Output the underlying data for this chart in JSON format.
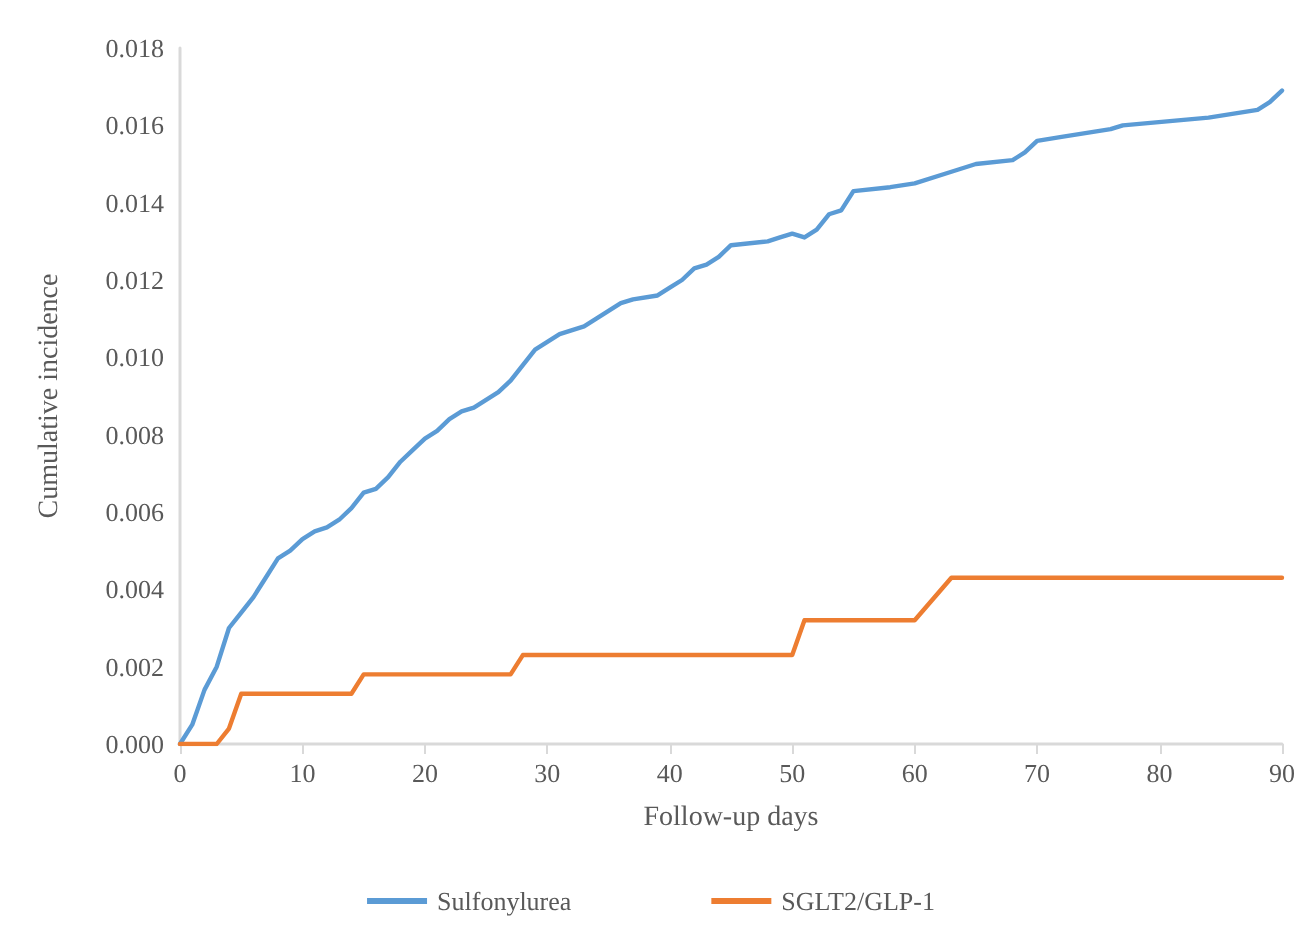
{
  "chart_data": {
    "type": "line",
    "xlabel": "Follow-up days",
    "ylabel": "Cumulative incidence",
    "legend": "bottom",
    "grid": false,
    "marker": "none",
    "line_style": "solid",
    "xlim": [
      0,
      90
    ],
    "xticks": [
      0,
      10,
      20,
      30,
      40,
      50,
      60,
      70,
      80,
      90
    ],
    "ylim": [
      0,
      0.018
    ],
    "yticks": [
      {
        "value": 0,
        "label": "0.000"
      },
      {
        "value": 0.002,
        "label": "0.002"
      },
      {
        "value": 0.004,
        "label": "0.004"
      },
      {
        "value": 0.006,
        "label": "0.006"
      },
      {
        "value": 0.008,
        "label": "0.008"
      },
      {
        "value": 0.01,
        "label": "0.010"
      },
      {
        "value": 0.012,
        "label": "0.012"
      },
      {
        "value": 0.014,
        "label": "0.014"
      },
      {
        "value": 0.016,
        "label": "0.016"
      },
      {
        "value": 0.018,
        "label": "0.018"
      }
    ],
    "series": [
      {
        "name": "Sulfonylurea",
        "color": "#5b9bd5",
        "x": [
          0,
          1,
          2,
          3,
          4,
          5,
          6,
          7,
          8,
          9,
          10,
          11,
          12,
          13,
          14,
          15,
          16,
          17,
          18,
          19,
          20,
          21,
          22,
          23,
          24,
          25,
          26,
          27,
          28,
          29,
          30,
          31,
          33,
          34,
          35,
          36,
          37,
          39,
          40,
          41,
          42,
          43,
          44,
          45,
          48,
          49,
          50,
          51,
          52,
          53,
          54,
          55,
          58,
          60,
          63,
          65,
          68,
          69,
          70,
          72,
          76,
          77,
          84,
          88,
          89,
          90
        ],
        "values": [
          0,
          0.0005,
          0.0014,
          0.002,
          0.003,
          0.0034,
          0.0038,
          0.0043,
          0.0048,
          0.005,
          0.0053,
          0.0055,
          0.0056,
          0.0058,
          0.0061,
          0.0065,
          0.0066,
          0.0069,
          0.0073,
          0.0076,
          0.0079,
          0.0081,
          0.0084,
          0.0086,
          0.0087,
          0.0089,
          0.0091,
          0.0094,
          0.0098,
          0.0102,
          0.0104,
          0.0106,
          0.0108,
          0.011,
          0.0112,
          0.0114,
          0.0115,
          0.0116,
          0.0118,
          0.012,
          0.0123,
          0.0124,
          0.0126,
          0.0129,
          0.013,
          0.0131,
          0.0132,
          0.0131,
          0.0133,
          0.0137,
          0.0138,
          0.0143,
          0.0144,
          0.0145,
          0.0148,
          0.015,
          0.0151,
          0.0153,
          0.0156,
          0.0157,
          0.0159,
          0.016,
          0.0162,
          0.0164,
          0.0166,
          0.0169
        ]
      },
      {
        "name": "SGLT2/GLP-1",
        "color": "#ed7d31",
        "x": [
          0,
          3,
          4,
          5,
          14,
          15,
          27,
          28,
          50,
          51,
          60,
          63,
          90
        ],
        "values": [
          0,
          0,
          0.0004,
          0.0013,
          0.0013,
          0.0018,
          0.0018,
          0.0023,
          0.0023,
          0.0032,
          0.0032,
          0.0043,
          0.0043
        ]
      }
    ]
  }
}
